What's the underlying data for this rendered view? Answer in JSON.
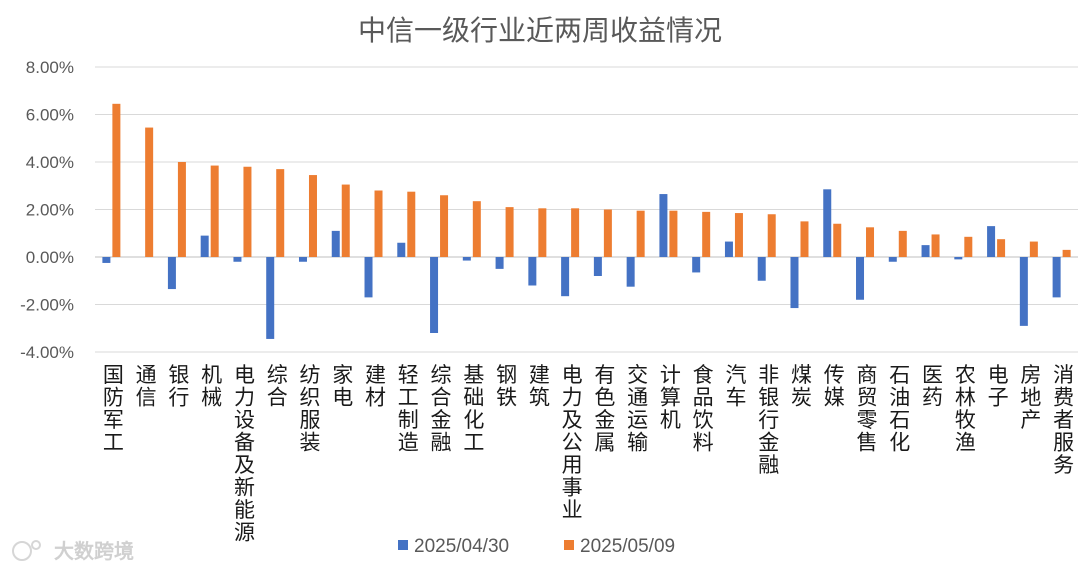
{
  "chart_data": {
    "type": "bar",
    "title": "中信一级行业近两周收益情况",
    "categories": [
      "国防军工",
      "通信",
      "银行",
      "机械",
      "电力设备及新能源",
      "综合",
      "纺织服装",
      "家电",
      "建材",
      "轻工制造",
      "综合金融",
      "基础化工",
      "钢铁",
      "建筑",
      "电力及公用事业",
      "有色金属",
      "交通运输",
      "计算机",
      "食品饮料",
      "汽车",
      "非银行金融",
      "煤炭",
      "传媒",
      "商贸零售",
      "石油石化",
      "医药",
      "农林牧渔",
      "电子",
      "房地产",
      "消费者服务"
    ],
    "series": [
      {
        "name": "2025/04/30",
        "color": "#4472C4",
        "values": [
          -0.25,
          0,
          -1.35,
          0.9,
          -0.2,
          -3.45,
          -0.2,
          1.1,
          -1.7,
          0.6,
          -3.2,
          -0.15,
          -0.5,
          -1.2,
          -1.65,
          -0.8,
          -1.25,
          2.65,
          -0.65,
          0.65,
          -1.0,
          -2.15,
          2.85,
          -1.8,
          -0.2,
          0.5,
          -0.1,
          1.3,
          -2.9,
          -1.7
        ]
      },
      {
        "name": "2025/05/09",
        "color": "#ED7D31",
        "values": [
          6.45,
          5.45,
          4.0,
          3.85,
          3.8,
          3.7,
          3.45,
          3.05,
          2.8,
          2.75,
          2.6,
          2.35,
          2.1,
          2.05,
          2.05,
          2.0,
          1.95,
          1.95,
          1.9,
          1.85,
          1.8,
          1.5,
          1.4,
          1.25,
          1.1,
          0.95,
          0.85,
          0.75,
          0.65,
          0.3
        ]
      }
    ],
    "ylim": [
      -4,
      8
    ],
    "yticks": [
      "8.00%",
      "6.00%",
      "4.00%",
      "2.00%",
      "0.00%",
      "-2.00%",
      "-4.00%"
    ],
    "ytick_values": [
      8,
      6,
      4,
      2,
      0,
      -2,
      -4
    ],
    "grid": true,
    "legend": "bottom"
  },
  "watermark": {
    "text": "大数跨境"
  }
}
